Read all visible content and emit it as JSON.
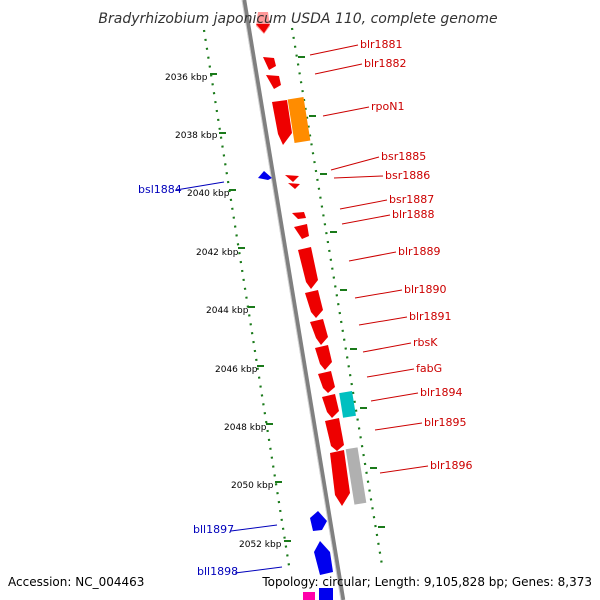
{
  "title": "Bradyrhizobium japonicum USDA 110, complete genome",
  "footer": {
    "accession": "Accession: NC_004463",
    "topology": "Topology: circular; Length: 9,105,828 bp; Genes: 8,373"
  },
  "colors": {
    "forward_label": "#cc0000",
    "reverse_label": "#0000bb",
    "backbone": "#808080",
    "ruler": "#1a7a1a",
    "red_gene": "#ee0000",
    "blue_gene": "#0000ee",
    "orange_gene": "#ff8c00",
    "cyan_gene": "#00c0c0",
    "gray_gene": "#b0b0b0",
    "pink_gene": "#ff9999"
  },
  "ticks": [
    "2036 kbp",
    "2038 kbp",
    "2040 kbp",
    "2042 kbp",
    "2044 kbp",
    "2046 kbp",
    "2048 kbp",
    "2050 kbp",
    "2052 kbp"
  ],
  "forward_labels": [
    "blr1881",
    "blr1882",
    "rpoN1",
    "bsr1885",
    "bsr1886",
    "bsr1887",
    "blr1888",
    "blr1889",
    "blr1890",
    "blr1891",
    "rbsK",
    "fabG",
    "blr1894",
    "blr1895",
    "blr1896"
  ],
  "reverse_labels": [
    "bsl1884",
    "bll1897",
    "bll1898"
  ]
}
